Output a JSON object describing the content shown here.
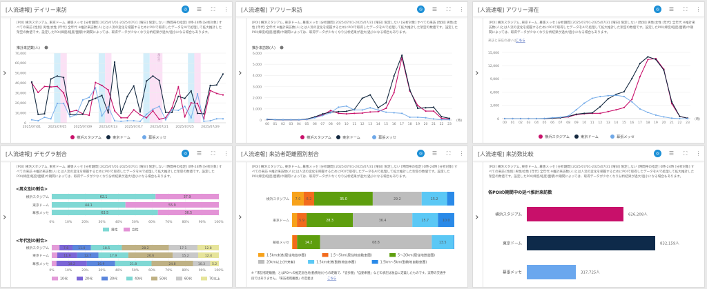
{
  "common": {
    "icons": [
      "ai-assist-icon",
      "list-icon",
      "fullscreen-icon",
      "more-vert-icon"
    ]
  },
  "panels": [
    {
      "title": "[人流速報] デイリー来訪",
      "description": "[POI] 横浜スタジアム, 東京ドーム, 幕張メッセ [分析期間] 2025/07/01-2025/07/31 [曜日] 限定しない [時間帯の指定] 0時-24時 [分析対象] すべての来訪 [性別] 男性/女性 [年代] 全年代 ※推計来訪数(人)とは人流の変化を把握するためにPOIで取得したデータをAIで処理して拡大推計した架空の数値です。設定したPOI(緯度/経度/面積)や期間によっては、取得データが少なくなり分析結果が過大/過小になる場合もあります。"
    },
    {
      "title": "[人流速報] アワリー来訪",
      "description": "[POI] 横浜スタジアム, 東京ドーム, 幕張メッセ [分析期間] 2025/07/01-2025/07/31 [曜日] 限定しない [分析対象] すべての来訪 [性別] 男性/女性 [年代] 全年代 ※推計来訪数(人)とは人流の変化を把握するためにPOIで取得したデータをAIで処理して拡大推計した架空の数値です。設定したPOI(緯度/経度/面積)や期間によっては、取得データが少なくなり分析結果が過大/過小になる場合もあります。"
    },
    {
      "title": "[人流速報] アワリー滞在",
      "description": "[POI] 横浜スタジアム, 東京ドーム, 幕張メッセ [分析期間] 2025/07/01-2025/07/31 [曜日] 限定しない [性別] 男性/女性 [年代] 全年代 ※推計来訪数(人)とは人流の変化を把握するためにPOIで取得したデータをAIで処理して拡大推計した架空の数値です。設定したPOI(緯度/経度/面積)や期間によっては、取得データが少なくなり分析結果が過大/過小になる場合もあります。",
      "note": "来訪と滞在の違いは",
      "note_link": "こちら"
    },
    {
      "title": "[人流速報] デモグラ割合",
      "description": "[POI] 横浜スタジアム, 東京ドーム, 幕張メッセ [分析期間] 2025/07/01-2025/07/31 [曜日] 限定しない [時間帯の指定] 0時-24時 [分析対象] すべての来訪 ※推計来訪数(人)とは人流の変化を把握するためにPOIで取得したデータをAIで処理して拡大推計した架空の数値です。設定したPOI(緯度/経度/面積)や期間によっては、取得データが少なくなり分析結果が過大/過小になる場合もあります。"
    },
    {
      "title": "[人流速報] 来訪者距離圏別割合",
      "description": "[POI] 横浜スタジアム, 東京ドーム, 幕張メッセ [分析期間] 2025/07/01-2025/07/31 [曜日] 限定しない [時間帯の指定] 0時-24時 [分析対象] すべての来訪 ※推計来訪数(人)とは人流の変化を把握するためにPOIで取得したデータをAIで処理して拡大推計した架空の数値です。設定したPOI(緯度/経度/面積)や期間によっては、取得データが少なくなり分析結果が過大/過小になる場合もあります。",
      "note": "※「来訪者距離圏」とはPOIへの推定居住地(勤務地)からの距離で、「徒歩圏」「自動車圏」などの表記は独自に定義したものです。実際の交通手段ではありません。「来訪者距離圏」の定義は",
      "note_link": "こちら"
    },
    {
      "title": "[人流速報] 来訪数比較",
      "description": "[POI] 横浜スタジアム, 東京ドーム, 幕張メッセ [分析期間] 2025/07/01-2025/07/31 [曜日] 限定しない [時間帯の指定] 0時-24時 [分析対象] すべての来訪 [性別] 男性/女性 [年代] 全年代 ※推計来訪数(人)とは人流の変化を把握するためにPOIで取得したデータをAIで処理して拡大推計した架空の数値です。設定したPOI(緯度/経度/面積)や期間によっては、取得データが少なくなり分析結果が過大/過小になる場合もあります。"
    }
  ],
  "poi_colors": [
    "#c8106a",
    "#13283f",
    "#6fa8e8"
  ],
  "chart_data": [
    {
      "type": "line",
      "title": "デイリー来訪",
      "ylabel": "推計来訪数(人)",
      "ylim": [
        0,
        70000
      ],
      "yticks": [
        0,
        10000,
        20000,
        30000,
        40000,
        50000,
        60000,
        70000
      ],
      "x": [
        "2025/07/01",
        "2025/07/02",
        "2025/07/03",
        "2025/07/04",
        "2025/07/05",
        "2025/07/06",
        "2025/07/07",
        "2025/07/08",
        "2025/07/09",
        "2025/07/10",
        "2025/07/11",
        "2025/07/12",
        "2025/07/13",
        "2025/07/14",
        "2025/07/15",
        "2025/07/16",
        "2025/07/17",
        "2025/07/18",
        "2025/07/19",
        "2025/07/20",
        "2025/07/21",
        "2025/07/22",
        "2025/07/23",
        "2025/07/24",
        "2025/07/25",
        "2025/07/26",
        "2025/07/27",
        "2025/07/28",
        "2025/07/29",
        "2025/07/30",
        "2025/07/31"
      ],
      "xtick_every": 4,
      "saturdays": [
        4,
        11,
        18,
        25
      ],
      "holidays": [
        5,
        12,
        19,
        20,
        26
      ],
      "holiday_label": "海の日",
      "series": [
        {
          "name": "横浜スタジアム",
          "values": [
            40000,
            30500,
            36500,
            36000,
            36500,
            30000,
            11000,
            12500,
            9000,
            7500,
            40500,
            37500,
            33000,
            12000,
            5000,
            5000,
            13000,
            8000,
            5000,
            12000,
            3500,
            5000,
            15000,
            36000,
            6000,
            20000,
            19500,
            4000,
            32500,
            29500,
            28000
          ]
        },
        {
          "name": "東京ドーム",
          "values": [
            41000,
            8500,
            9000,
            44000,
            47000,
            45500,
            8500,
            8500,
            8500,
            22000,
            24500,
            27500,
            10000,
            61000,
            9500,
            26500,
            37000,
            11000,
            42000,
            47000,
            42500,
            10500,
            10500,
            26500,
            24500,
            32000,
            9500,
            9000,
            37500,
            38000,
            49000
          ]
        },
        {
          "name": "幕張メッセ",
          "values": [
            3000,
            2000,
            5500,
            4000,
            19500,
            19500,
            6000,
            8000,
            23000,
            25500,
            35000,
            7000,
            16000,
            2000,
            1500,
            2000,
            2000,
            1500,
            8500,
            13500,
            16500,
            3000,
            13000,
            12500,
            16500,
            5000,
            29000,
            1500,
            2000,
            4000,
            4000
          ]
        }
      ]
    },
    {
      "type": "line",
      "title": "アワリー来訪",
      "ylabel": "推計来訪数(人)",
      "ylim": [
        0,
        6000
      ],
      "yticks": [
        0,
        1000,
        2000,
        3000,
        4000,
        5000,
        6000
      ],
      "xunit": "(時)",
      "x": [
        "00",
        "01",
        "02",
        "03",
        "04",
        "05",
        "06",
        "07",
        "08",
        "09",
        "10",
        "11",
        "12",
        "13",
        "14",
        "15",
        "16",
        "17",
        "18",
        "19",
        "20",
        "21",
        "22",
        "23"
      ],
      "xtick_every": 1,
      "series": [
        {
          "name": "横浜スタジアム",
          "values": [
            50,
            30,
            20,
            20,
            20,
            50,
            250,
            450,
            850,
            600,
            550,
            600,
            620,
            720,
            750,
            1050,
            2450,
            5600,
            2600,
            1300,
            800,
            800,
            150,
            100
          ]
        },
        {
          "name": "東京ドーム",
          "values": [
            50,
            30,
            20,
            20,
            20,
            80,
            280,
            550,
            700,
            750,
            780,
            950,
            1950,
            2250,
            1100,
            1550,
            3950,
            5800,
            2700,
            1050,
            1100,
            1150,
            300,
            150
          ]
        },
        {
          "name": "幕張メッセ",
          "values": [
            80,
            30,
            20,
            20,
            20,
            50,
            200,
            400,
            650,
            1150,
            1250,
            900,
            900,
            1100,
            900,
            700,
            650,
            600,
            250,
            250,
            200,
            100,
            30,
            30
          ]
        }
      ]
    },
    {
      "type": "line",
      "title": "アワリー滞在",
      "ylim": [
        0,
        15000
      ],
      "yticks": [
        0,
        3000,
        6000,
        9000,
        12000,
        15000
      ],
      "xunit": "(時)",
      "x": [
        "00",
        "01",
        "02",
        "03",
        "04",
        "05",
        "06",
        "07",
        "08",
        "09",
        "10",
        "11",
        "12",
        "13",
        "14",
        "15",
        "16",
        "17",
        "18",
        "19",
        "20",
        "21",
        "22",
        "23"
      ],
      "xtick_every": 1,
      "series": [
        {
          "name": "横浜スタジアム",
          "values": [
            0,
            0,
            0,
            0,
            0,
            0,
            100,
            200,
            400,
            900,
            1100,
            1200,
            1200,
            1600,
            2000,
            2500,
            4400,
            9500,
            13400,
            13600,
            11200,
            3400,
            500,
            100
          ]
        },
        {
          "name": "東京ドーム",
          "values": [
            0,
            0,
            0,
            0,
            0,
            0,
            100,
            200,
            500,
            1000,
            1200,
            1300,
            2700,
            4500,
            5500,
            6100,
            9100,
            12500,
            14000,
            13400,
            11000,
            3800,
            500,
            100
          ]
        },
        {
          "name": "幕張メッセ",
          "values": [
            0,
            0,
            0,
            0,
            0,
            50,
            200,
            300,
            600,
            2000,
            3500,
            4600,
            5000,
            5200,
            5300,
            5000,
            3800,
            2200,
            1400,
            800,
            400,
            100,
            0,
            0
          ]
        }
      ]
    },
    {
      "type": "bar",
      "stacked": "percent",
      "title": "<男女別の割合>",
      "categories": [
        "横浜スタジアム",
        "東京ドーム",
        "幕張メッセ"
      ],
      "xticks": [
        "0%",
        "10%",
        "20%",
        "30%",
        "40%",
        "50%",
        "60%",
        "70%",
        "80%",
        "90%",
        "100%"
      ],
      "series": [
        {
          "name": "男性",
          "color": "#7fd8d4",
          "values": [
            62.1,
            44.1,
            63.5
          ]
        },
        {
          "name": "女性",
          "color": "#e393d6",
          "values": [
            37.9,
            55.9,
            36.5
          ]
        }
      ]
    },
    {
      "type": "bar",
      "stacked": "percent",
      "title": "<年代別の割合>",
      "categories": [
        "横浜スタジアム",
        "東京ドーム",
        "幕張メッセ"
      ],
      "xticks": [
        "0%",
        "10%",
        "20%",
        "30%",
        "40%",
        "50%",
        "60%",
        "70%",
        "80%",
        "90%",
        "100%"
      ],
      "series": [
        {
          "name": "10代",
          "color": "#e39bd8",
          "values": [
            4.6,
            3.3,
            2.8
          ],
          "labeled": false
        },
        {
          "name": "20代",
          "color": "#7b65d6",
          "values": [
            7.8,
            11.9,
            18.2
          ]
        },
        {
          "name": "30代",
          "color": "#5b86dc",
          "values": [
            11.0,
            12.7,
            16.9
          ]
        },
        {
          "name": "40代",
          "color": "#7fd8d4",
          "values": [
            18.5,
            17.9,
            21.8
          ]
        },
        {
          "name": "50代",
          "color": "#bfb184",
          "values": [
            28.2,
            26.6,
            24.8
          ]
        },
        {
          "name": "60代",
          "color": "#c9c9c9",
          "values": [
            17.1,
            15.2,
            10.3
          ]
        },
        {
          "name": "70以上",
          "color": "#e6e49a",
          "values": [
            12.8,
            12.4,
            5.2
          ]
        }
      ]
    },
    {
      "type": "bar",
      "stacked": "percent",
      "title": "来訪者距離圏別割合",
      "categories": [
        "横浜スタジアム",
        "東京ドーム",
        "幕張メッセ"
      ],
      "series": [
        {
          "name": "1.5km未満(居住地徒歩圏)",
          "color": "#f7a21b",
          "values": [
            7.0,
            3.0,
            0.4
          ],
          "labels": [
            "7.0",
            "",
            ""
          ]
        },
        {
          "name": "1.5～5km(居住地自動車圏)",
          "color": "#f26b1d",
          "values": [
            6.2,
            5.9,
            2.7
          ],
          "labels": [
            "6.2",
            "5.9",
            ""
          ]
        },
        {
          "name": "5～20km(居住地鉄道圏)",
          "color": "#5e9e0e",
          "values": [
            35.0,
            28.3,
            14.2
          ],
          "labels": [
            "35.0",
            "28.3",
            "14.2"
          ]
        },
        {
          "name": "20km以上(外来者)",
          "color": "#bdbdbd",
          "values": [
            29.2,
            36.4,
            68.8
          ],
          "labels": [
            "29.2",
            "36.4",
            "68.8"
          ]
        },
        {
          "name": "1.5km未満(勤務地徒歩圏)",
          "color": "#5bc8f5",
          "values": [
            15.2,
            15.7,
            13.5
          ],
          "labels": [
            "15.2",
            "15.7",
            "13.5"
          ]
        },
        {
          "name": "1.5km～5km(勤務地自動車圏)",
          "color": "#2a8ae8",
          "values": [
            4.3,
            10.0,
            0.4
          ],
          "labels": [
            "",
            "10.0",
            ""
          ]
        }
      ]
    },
    {
      "type": "bar",
      "title": "各POIの期間中の延べ推計来訪数",
      "categories": [
        "横浜スタジアム",
        "東京ドーム",
        "幕張メッセ"
      ],
      "values": [
        626208,
        832159,
        317725
      ],
      "value_labels": [
        "626,208人",
        "832,159人",
        "317,725人"
      ],
      "colors": [
        "#c8106a",
        "#0e2a4a",
        "#6aa7ee"
      ]
    }
  ]
}
